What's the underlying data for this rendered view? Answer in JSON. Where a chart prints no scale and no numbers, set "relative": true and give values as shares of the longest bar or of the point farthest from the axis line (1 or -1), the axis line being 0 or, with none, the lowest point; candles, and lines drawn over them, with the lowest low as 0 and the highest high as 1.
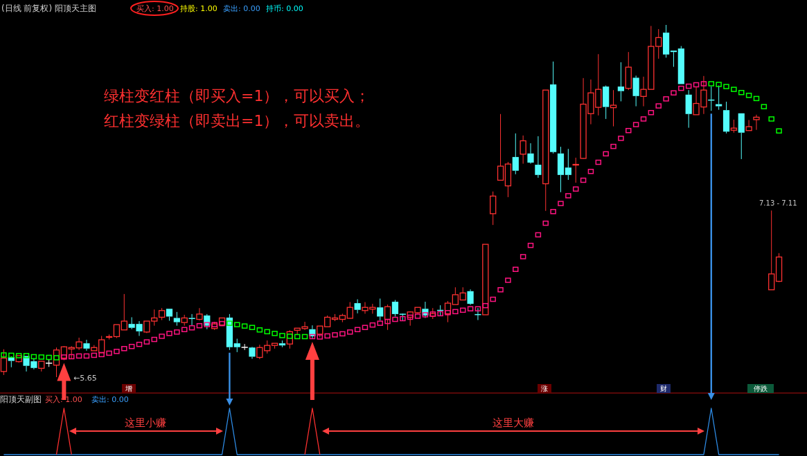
{
  "chart_data": [
    {
      "type": "candlestick",
      "title": "(日线 前复权) 阳顶天主图",
      "relative": true,
      "annotations": [
        "买入: 1.00",
        "持股: 1.00",
        "卖出: 0.00",
        "持币: 0.00",
        "绿柱变红柱（即买入=1），可以买入；",
        "红柱变绿柱（即卖出=1），可以卖出。",
        "←5.65",
        "7.13 - 7.11",
        "增",
        "涨",
        "财",
        "停跌"
      ],
      "categories": [
        null,
        null,
        null,
        null,
        null,
        null,
        null,
        null,
        null,
        null,
        null,
        null,
        null,
        null,
        null,
        null,
        null,
        null,
        null,
        null,
        null,
        null,
        null,
        null,
        null,
        null,
        null,
        null,
        null,
        null,
        null,
        null,
        null,
        null,
        null,
        null,
        null,
        null,
        null,
        null,
        null,
        null,
        null,
        null,
        null,
        null,
        null,
        null,
        null,
        null,
        null,
        null,
        null,
        null,
        null,
        null,
        null,
        null,
        null,
        null,
        null,
        null,
        null,
        null,
        null,
        null,
        null,
        null,
        null,
        null,
        null,
        null,
        null,
        null,
        null,
        null,
        null,
        null,
        null,
        null,
        null,
        null,
        null,
        null,
        null,
        null,
        null,
        null,
        null,
        null,
        null,
        null,
        null,
        null,
        null,
        null,
        null,
        null,
        null,
        null,
        null,
        null,
        null,
        null
      ],
      "ohlc": [
        [
          0.016,
          0.079,
          0.006,
          0.054
        ],
        [
          0.057,
          0.059,
          0.028,
          0.046
        ],
        [
          0.044,
          0.061,
          0.041,
          0.061
        ],
        [
          0.06,
          0.06,
          0.016,
          0.032
        ],
        [
          0.045,
          0.054,
          0.022,
          0.026
        ],
        [
          0.025,
          0.045,
          0.016,
          0.045
        ],
        [
          0.041,
          0.051,
          0.029,
          0.041
        ],
        [
          0.034,
          0.084,
          0.0,
          0.077
        ],
        [
          0.054,
          0.088,
          0.048,
          0.086
        ],
        [
          0.08,
          0.088,
          0.052,
          0.084
        ],
        [
          0.083,
          0.112,
          0.077,
          0.1
        ],
        [
          0.096,
          0.106,
          0.075,
          0.081
        ],
        [
          0.075,
          0.091,
          0.075,
          0.084
        ],
        [
          0.069,
          0.117,
          0.069,
          0.106
        ],
        [
          0.113,
          0.121,
          0.107,
          0.115
        ],
        [
          0.115,
          0.149,
          0.111,
          0.149
        ],
        [
          0.134,
          0.236,
          0.134,
          0.159
        ],
        [
          0.151,
          0.17,
          0.136,
          0.14
        ],
        [
          0.151,
          0.159,
          0.117,
          0.13
        ],
        [
          0.128,
          0.159,
          0.125,
          0.159
        ],
        [
          0.159,
          0.192,
          0.146,
          0.168
        ],
        [
          0.17,
          0.196,
          0.162,
          0.189
        ],
        [
          0.194,
          0.194,
          0.16,
          0.172
        ],
        [
          0.168,
          0.185,
          0.146,
          0.156
        ],
        [
          0.155,
          0.177,
          0.146,
          0.168
        ],
        [
          0.168,
          0.179,
          0.146,
          0.166
        ],
        [
          0.164,
          0.196,
          0.161,
          0.179
        ],
        [
          0.175,
          0.179,
          0.136,
          0.146
        ],
        [
          0.138,
          0.157,
          0.134,
          0.151
        ],
        [
          0.148,
          0.168,
          0.145,
          0.168
        ],
        [
          0.169,
          0.179,
          0.077,
          0.085
        ],
        [
          0.096,
          0.109,
          0.071,
          0.085
        ],
        [
          0.086,
          0.094,
          0.077,
          0.086
        ],
        [
          0.084,
          0.086,
          0.052,
          0.058
        ],
        [
          0.056,
          0.092,
          0.051,
          0.084
        ],
        [
          0.075,
          0.104,
          0.067,
          0.09
        ],
        [
          0.09,
          0.096,
          0.081,
          0.096
        ],
        [
          0.096,
          0.104,
          0.085,
          0.09
        ],
        [
          0.094,
          0.133,
          0.081,
          0.129
        ],
        [
          0.133,
          0.139,
          0.121,
          0.139
        ],
        [
          0.138,
          0.157,
          0.134,
          0.143
        ],
        [
          0.136,
          0.147,
          0.108,
          0.116
        ],
        [
          0.122,
          0.145,
          0.113,
          0.145
        ],
        [
          0.143,
          0.175,
          0.143,
          0.17
        ],
        [
          0.164,
          0.179,
          0.159,
          0.168
        ],
        [
          0.164,
          0.18,
          0.156,
          0.175
        ],
        [
          0.167,
          0.213,
          0.166,
          0.198
        ],
        [
          0.21,
          0.221,
          0.181,
          0.191
        ],
        [
          0.189,
          0.213,
          0.18,
          0.198
        ],
        [
          0.193,
          0.208,
          0.18,
          0.198
        ],
        [
          0.198,
          0.223,
          0.161,
          0.172
        ],
        [
          0.164,
          0.206,
          0.134,
          0.2
        ],
        [
          0.214,
          0.219,
          0.172,
          0.179
        ],
        [
          0.18,
          0.181,
          0.161,
          0.179
        ],
        [
          0.17,
          0.187,
          0.146,
          0.185
        ],
        [
          0.183,
          0.198,
          0.181,
          0.198
        ],
        [
          0.194,
          0.214,
          0.168,
          0.175
        ],
        [
          0.173,
          0.196,
          0.165,
          0.18
        ],
        [
          0.191,
          0.204,
          0.173,
          0.189
        ],
        [
          0.18,
          0.216,
          0.156,
          0.21
        ],
        [
          0.206,
          0.255,
          0.206,
          0.234
        ],
        [
          0.219,
          0.255,
          0.219,
          0.239
        ],
        [
          0.244,
          0.249,
          0.205,
          0.208
        ],
        [
          0.179,
          0.196,
          0.162,
          0.177
        ],
        [
          0.177,
          0.377,
          0.177,
          0.377
        ],
        [
          0.464,
          0.527,
          0.432,
          0.514
        ],
        [
          0.559,
          0.747,
          0.559,
          0.599
        ],
        [
          0.543,
          0.611,
          0.511,
          0.605
        ],
        [
          0.625,
          0.692,
          0.576,
          0.586
        ],
        [
          0.633,
          0.686,
          0.606,
          0.671
        ],
        [
          0.635,
          0.664,
          0.606,
          0.609
        ],
        [
          0.603,
          0.684,
          0.566,
          0.574
        ],
        [
          0.549,
          0.815,
          0.472,
          0.815
        ],
        [
          0.831,
          0.896,
          0.635,
          0.639
        ],
        [
          0.635,
          0.654,
          0.525,
          0.574
        ],
        [
          0.595,
          0.648,
          0.56,
          0.574
        ],
        [
          0.603,
          0.623,
          0.552,
          0.604
        ],
        [
          0.621,
          0.849,
          0.62,
          0.775
        ],
        [
          0.748,
          0.845,
          0.718,
          0.807
        ],
        [
          0.766,
          0.917,
          0.743,
          0.817
        ],
        [
          0.825,
          0.828,
          0.733,
          0.767
        ],
        [
          0.765,
          0.815,
          0.712,
          0.772
        ],
        [
          0.825,
          0.894,
          0.783,
          0.812
        ],
        [
          0.82,
          0.923,
          0.815,
          0.88
        ],
        [
          0.85,
          0.856,
          0.769,
          0.798
        ],
        [
          0.797,
          0.853,
          0.769,
          0.817
        ],
        [
          0.817,
          0.997,
          0.817,
          0.939
        ],
        [
          0.939,
          0.988,
          0.904,
          0.964
        ],
        [
          0.978,
          1.0,
          0.907,
          0.916
        ],
        [
          0.927,
          0.927,
          0.881,
          0.923
        ],
        [
          0.933,
          0.94,
          0.832,
          0.832
        ],
        [
          0.802,
          0.815,
          0.708,
          0.747
        ],
        [
          0.745,
          0.823,
          0.745,
          0.777
        ],
        [
          0.767,
          0.855,
          0.747,
          0.815
        ],
        [
          0.788,
          0.825,
          0.756,
          0.787
        ],
        [
          0.775,
          0.828,
          0.759,
          0.769
        ],
        [
          0.758,
          0.782,
          0.692,
          0.697
        ],
        [
          0.701,
          0.731,
          0.694,
          0.707
        ],
        [
          0.749,
          0.749,
          0.619,
          0.694
        ],
        [
          0.7,
          0.73,
          0.7,
          0.711
        ],
        [
          0.731,
          0.745,
          0.702,
          0.738
        ],
        null,
        [
          0.248,
          0.473,
          0.248,
          0.293
        ],
        [
          0.272,
          0.352,
          0.27,
          0.341
        ]
      ],
      "series": [
        {
          "type": "scatter",
          "marker": "square",
          "color": "#00ff00",
          "values": [
            0.063,
            0.062,
            0.061,
            0.061,
            0.058,
            0.057,
            0.056,
            0.055,
            null,
            null,
            null,
            null,
            null,
            null,
            null,
            null,
            null,
            null,
            null,
            null,
            null,
            null,
            null,
            null,
            null,
            null,
            null,
            null,
            null,
            null,
            0.153,
            0.149,
            0.145,
            0.141,
            0.134,
            0.129,
            0.124,
            0.118,
            0.116,
            0.115,
            0.115,
            null,
            null,
            null,
            null,
            null,
            null,
            null,
            null,
            null,
            null,
            null,
            null,
            null,
            null,
            null,
            null,
            null,
            null,
            null,
            null,
            null,
            null,
            null,
            null,
            null,
            null,
            null,
            null,
            null,
            null,
            null,
            null,
            null,
            null,
            null,
            null,
            null,
            null,
            null,
            null,
            null,
            null,
            null,
            null,
            null,
            null,
            null,
            null,
            null,
            null,
            null,
            null,
            null,
            0.833,
            0.831,
            0.825,
            0.817,
            0.808,
            0.8,
            0.791,
            0.768,
            0.733,
            0.699
          ]
        },
        {
          "type": "scatter",
          "marker": "square",
          "color": "#ff1480",
          "values": [
            null,
            null,
            null,
            null,
            null,
            null,
            null,
            null,
            0.057,
            0.058,
            0.06,
            0.06,
            0.062,
            0.064,
            0.068,
            0.073,
            0.081,
            0.087,
            0.093,
            0.1,
            0.107,
            0.116,
            0.124,
            0.128,
            0.135,
            0.14,
            0.146,
            0.149,
            0.149,
            0.152,
            null,
            null,
            null,
            null,
            null,
            null,
            null,
            null,
            null,
            null,
            null,
            0.115,
            0.114,
            0.117,
            0.12,
            0.123,
            0.128,
            0.135,
            0.141,
            0.148,
            0.153,
            0.158,
            0.164,
            0.166,
            0.17,
            0.173,
            0.177,
            0.179,
            0.18,
            0.183,
            0.186,
            0.19,
            0.194,
            0.194,
            0.203,
            0.221,
            0.248,
            0.275,
            0.306,
            0.342,
            0.374,
            0.404,
            0.437,
            0.47,
            0.493,
            0.515,
            0.534,
            0.559,
            0.584,
            0.61,
            0.634,
            0.655,
            0.678,
            0.7,
            0.717,
            0.733,
            0.751,
            0.77,
            0.79,
            0.807,
            0.82,
            0.826,
            0.83,
            0.833,
            null,
            null,
            null,
            null,
            null,
            null,
            null,
            null,
            null,
            null
          ]
        }
      ]
    },
    {
      "type": "line",
      "title": "阳顶天副图",
      "relative": true,
      "annotations": [
        "买入: 1.00",
        "卖出: 0.00",
        "这里小赚",
        "这里大赚"
      ],
      "categories": [
        null,
        null,
        null,
        null,
        null,
        null,
        null,
        null,
        null,
        null,
        null,
        null,
        null,
        null,
        null,
        null,
        null,
        null,
        null,
        null,
        null,
        null,
        null,
        null,
        null,
        null,
        null,
        null,
        null,
        null,
        null,
        null,
        null,
        null,
        null,
        null,
        null,
        null,
        null,
        null,
        null,
        null,
        null,
        null,
        null,
        null,
        null,
        null,
        null,
        null,
        null,
        null,
        null,
        null,
        null,
        null,
        null,
        null,
        null,
        null,
        null,
        null,
        null,
        null,
        null,
        null,
        null,
        null,
        null,
        null,
        null,
        null,
        null,
        null,
        null,
        null,
        null,
        null,
        null,
        null,
        null,
        null,
        null,
        null,
        null,
        null,
        null,
        null,
        null,
        null,
        null,
        null,
        null,
        null,
        null,
        null,
        null,
        null,
        null,
        null,
        null,
        null,
        null,
        null
      ],
      "series": [
        {
          "color": "#2e8ce6",
          "values": [
            0,
            0,
            0,
            0,
            0,
            0,
            0,
            0,
            0,
            0,
            0,
            0,
            0,
            0,
            0,
            0,
            0,
            0,
            0,
            0,
            0,
            0,
            0,
            0,
            0,
            0,
            0,
            0,
            0,
            0,
            1,
            0,
            0,
            0,
            0,
            0,
            0,
            0,
            0,
            0,
            0,
            0,
            0,
            0,
            0,
            0,
            0,
            0,
            0,
            0,
            0,
            0,
            0,
            0,
            0,
            0,
            0,
            0,
            0,
            0,
            0,
            0,
            0,
            0,
            0,
            0,
            0,
            0,
            0,
            0,
            0,
            0,
            0,
            0,
            0,
            0,
            0,
            0,
            0,
            0,
            0,
            0,
            0,
            0,
            0,
            0,
            0,
            0,
            0,
            0,
            0,
            0,
            0,
            0,
            1,
            0,
            0,
            0,
            0,
            0,
            0,
            0,
            0,
            0
          ]
        },
        {
          "color": "#ff3030",
          "values": [
            null,
            null,
            null,
            null,
            null,
            null,
            null,
            0,
            1,
            0,
            null,
            null,
            null,
            null,
            null,
            null,
            null,
            null,
            null,
            null,
            null,
            null,
            null,
            null,
            null,
            null,
            null,
            null,
            null,
            null,
            null,
            null,
            null,
            null,
            null,
            null,
            null,
            null,
            null,
            null,
            0,
            1,
            0,
            null,
            null,
            null,
            null,
            null,
            null,
            null,
            null,
            null,
            null,
            null,
            null,
            null,
            null,
            null,
            null,
            null,
            null,
            null,
            null,
            null,
            null,
            null,
            null,
            null,
            null,
            null,
            null,
            null,
            null,
            null,
            null,
            null,
            null,
            null,
            null,
            null,
            null,
            null,
            null,
            null,
            null,
            null,
            null,
            null,
            null,
            null,
            null,
            null,
            null,
            null,
            null,
            null,
            null,
            null,
            null,
            null,
            null,
            null,
            null,
            null
          ]
        }
      ]
    }
  ]
}
